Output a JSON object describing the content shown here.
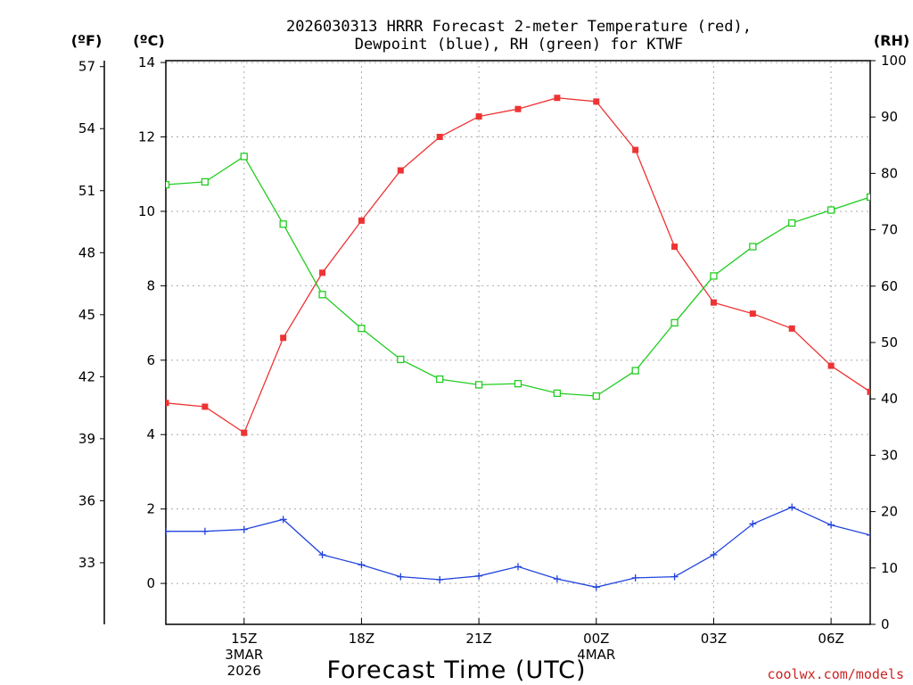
{
  "chart_data": {
    "type": "line",
    "title_lines": [
      "2026030313 HRRR Forecast 2-meter Temperature (red),",
      "Dewpoint (blue), RH (green) for KTWF"
    ],
    "units": {
      "fahrenheit": "(ºF)",
      "celsius": "(ºC)",
      "rh": "(RH)"
    },
    "xlabel": "Forecast Time (UTC)",
    "credit": "coolwx.com/models",
    "x_hours": [
      13,
      14,
      15,
      16,
      17,
      18,
      19,
      20,
      21,
      22,
      23,
      24,
      25,
      26,
      27,
      28,
      29,
      30,
      31
    ],
    "xlim": [
      13,
      31
    ],
    "x_ticks": [
      {
        "hour": 15,
        "lines": [
          "15Z",
          "3MAR",
          "2026"
        ]
      },
      {
        "hour": 18,
        "lines": [
          "18Z"
        ]
      },
      {
        "hour": 21,
        "lines": [
          "21Z"
        ]
      },
      {
        "hour": 24,
        "lines": [
          "00Z",
          "4MAR"
        ]
      },
      {
        "hour": 27,
        "lines": [
          "03Z"
        ]
      },
      {
        "hour": 30,
        "lines": [
          "06Z"
        ]
      }
    ],
    "celsius_axis": {
      "ylim": [
        -1.1,
        14.05
      ],
      "ticks": [
        "0",
        "2",
        "4",
        "6",
        "8",
        "10",
        "12",
        "14"
      ]
    },
    "fahrenheit_axis": {
      "ticks": [
        "33",
        "36",
        "39",
        "42",
        "45",
        "48",
        "51",
        "54",
        "57"
      ]
    },
    "rh_axis": {
      "ylim": [
        0,
        100
      ],
      "ticks": [
        "0",
        "10",
        "20",
        "30",
        "40",
        "50",
        "60",
        "70",
        "80",
        "90",
        "100"
      ]
    },
    "series": [
      {
        "name": "Temperature",
        "color": "#ee3333",
        "marker": "filled-square",
        "axis": "celsius",
        "values": [
          4.85,
          4.75,
          4.05,
          6.6,
          8.35,
          9.75,
          11.1,
          12.0,
          12.55,
          12.75,
          13.05,
          12.95,
          11.65,
          9.05,
          7.55,
          7.25,
          6.85,
          5.85,
          5.15
        ]
      },
      {
        "name": "Dewpoint",
        "color": "#2244dd",
        "marker": "plus",
        "axis": "celsius",
        "values": [
          1.4,
          1.4,
          1.45,
          1.72,
          0.77,
          0.5,
          0.18,
          0.1,
          0.2,
          0.45,
          0.12,
          -0.1,
          0.15,
          0.18,
          0.77,
          1.6,
          2.05,
          1.57,
          1.3
        ]
      },
      {
        "name": "RH",
        "color": "#22cc22",
        "marker": "open-square",
        "axis": "rh",
        "values": [
          78,
          78.5,
          83,
          71,
          58.5,
          52.5,
          47,
          43.5,
          42.5,
          42.7,
          41,
          40.5,
          45,
          53.5,
          61.8,
          67,
          71.2,
          73.5,
          75.8
        ]
      }
    ]
  }
}
